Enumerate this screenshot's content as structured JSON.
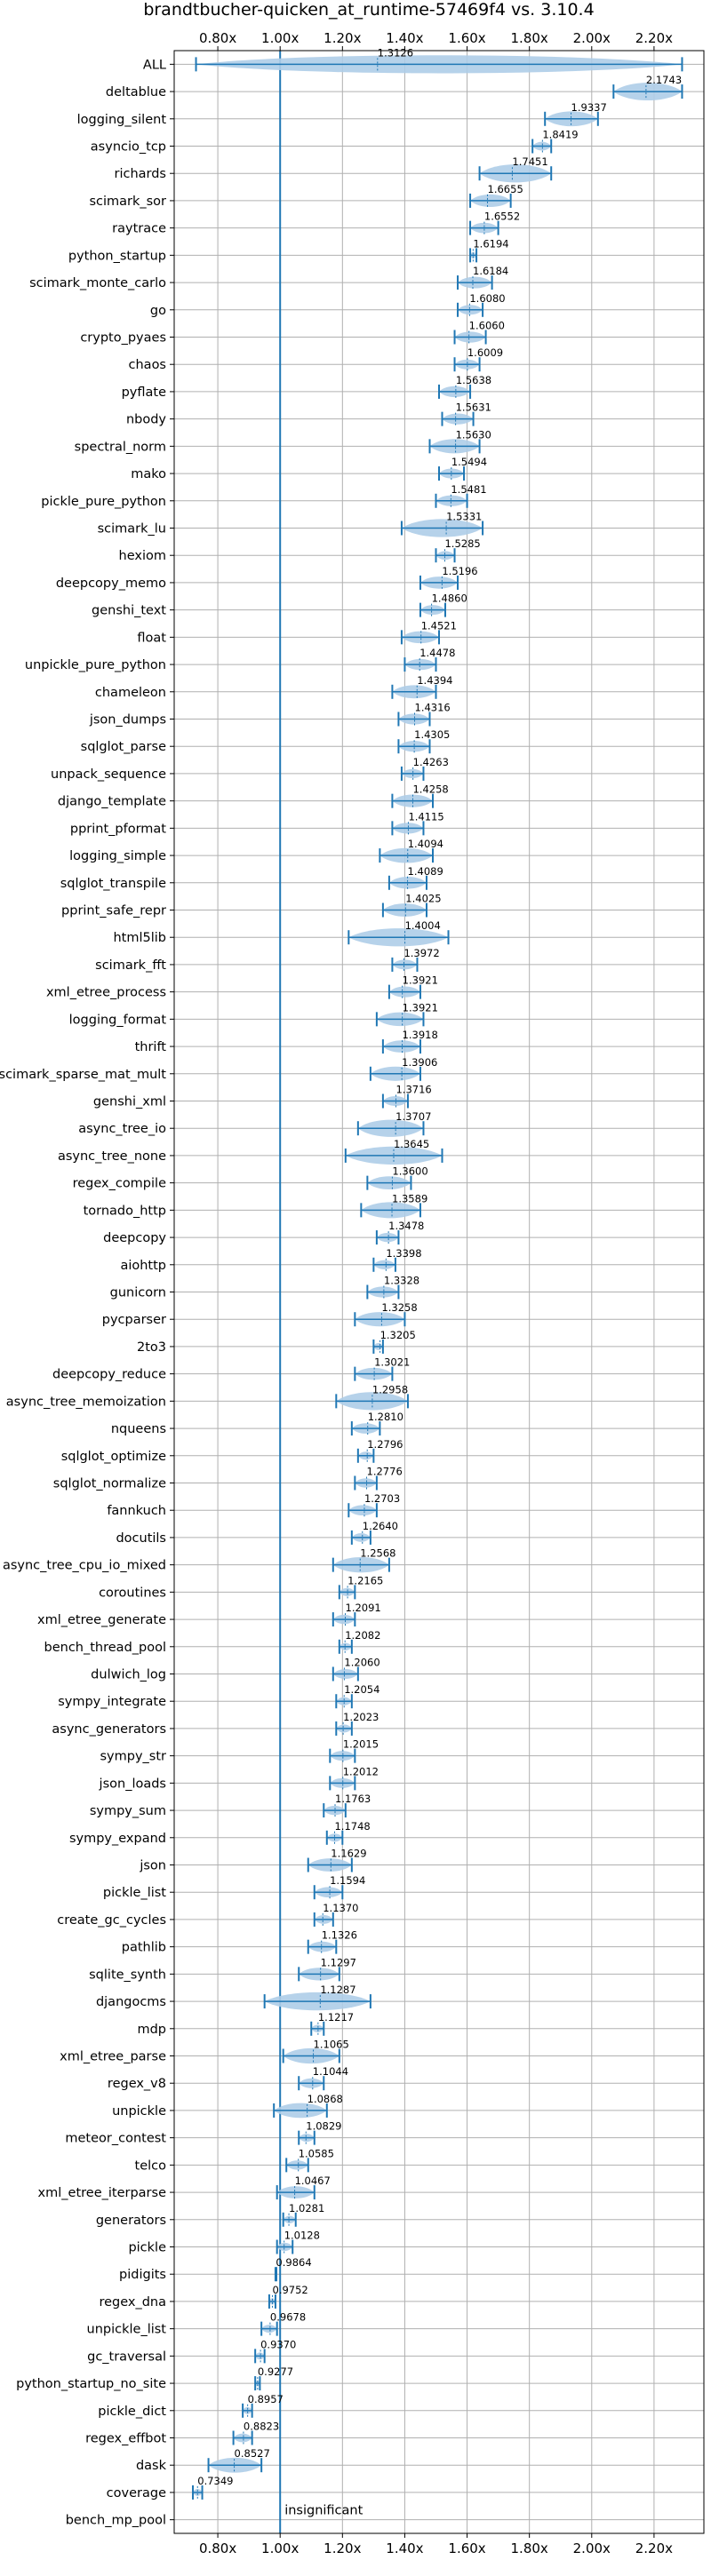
{
  "chart_data": {
    "type": "violin",
    "title": "brandtbucher-quicken_at_runtime-57469f4 vs. 3.10.4",
    "xlabel": "",
    "ylabel": "",
    "xlim": [
      0.66,
      2.36
    ],
    "x_ticks": [
      0.8,
      1.0,
      1.2,
      1.4,
      1.6,
      1.8,
      2.0,
      2.2
    ],
    "x_tick_labels": [
      "0.80x",
      "1.00x",
      "1.20x",
      "1.40x",
      "1.60x",
      "1.80x",
      "2.00x",
      "2.20x"
    ],
    "reference_line": 1.0,
    "grid": true,
    "colors": {
      "series": "#1f77b4",
      "violin": "#aecde8",
      "grid": "#b0b0b0"
    },
    "benchmarks": [
      {
        "name": "ALL",
        "value": 1.3126,
        "min": 0.73,
        "max": 2.29,
        "label": "1.3126"
      },
      {
        "name": "deltablue",
        "value": 2.1743,
        "min": 2.07,
        "max": 2.29,
        "label": "2.1743"
      },
      {
        "name": "logging_silent",
        "value": 1.9337,
        "min": 1.85,
        "max": 2.02,
        "label": "1.9337"
      },
      {
        "name": "asyncio_tcp",
        "value": 1.8419,
        "min": 1.81,
        "max": 1.87,
        "label": "1.8419"
      },
      {
        "name": "richards",
        "value": 1.7451,
        "min": 1.64,
        "max": 1.87,
        "label": "1.7451"
      },
      {
        "name": "scimark_sor",
        "value": 1.6655,
        "min": 1.61,
        "max": 1.74,
        "label": "1.6655"
      },
      {
        "name": "raytrace",
        "value": 1.6552,
        "min": 1.61,
        "max": 1.7,
        "label": "1.6552"
      },
      {
        "name": "python_startup",
        "value": 1.6194,
        "min": 1.61,
        "max": 1.63,
        "label": "1.6194"
      },
      {
        "name": "scimark_monte_carlo",
        "value": 1.6184,
        "min": 1.57,
        "max": 1.68,
        "label": "1.6184"
      },
      {
        "name": "go",
        "value": 1.608,
        "min": 1.57,
        "max": 1.65,
        "label": "1.6080"
      },
      {
        "name": "crypto_pyaes",
        "value": 1.606,
        "min": 1.56,
        "max": 1.66,
        "label": "1.6060"
      },
      {
        "name": "chaos",
        "value": 1.6009,
        "min": 1.56,
        "max": 1.64,
        "label": "1.6009"
      },
      {
        "name": "pyflate",
        "value": 1.5638,
        "min": 1.51,
        "max": 1.61,
        "label": "1.5638"
      },
      {
        "name": "nbody",
        "value": 1.5631,
        "min": 1.52,
        "max": 1.62,
        "label": "1.5631"
      },
      {
        "name": "spectral_norm",
        "value": 1.563,
        "min": 1.48,
        "max": 1.64,
        "label": "1.5630"
      },
      {
        "name": "mako",
        "value": 1.5494,
        "min": 1.51,
        "max": 1.59,
        "label": "1.5494"
      },
      {
        "name": "pickle_pure_python",
        "value": 1.5481,
        "min": 1.5,
        "max": 1.6,
        "label": "1.5481"
      },
      {
        "name": "scimark_lu",
        "value": 1.5331,
        "min": 1.39,
        "max": 1.65,
        "label": "1.5331"
      },
      {
        "name": "hexiom",
        "value": 1.5285,
        "min": 1.5,
        "max": 1.56,
        "label": "1.5285"
      },
      {
        "name": "deepcopy_memo",
        "value": 1.5196,
        "min": 1.45,
        "max": 1.57,
        "label": "1.5196"
      },
      {
        "name": "genshi_text",
        "value": 1.486,
        "min": 1.45,
        "max": 1.53,
        "label": "1.4860"
      },
      {
        "name": "float",
        "value": 1.4521,
        "min": 1.39,
        "max": 1.51,
        "label": "1.4521"
      },
      {
        "name": "unpickle_pure_python",
        "value": 1.4478,
        "min": 1.4,
        "max": 1.5,
        "label": "1.4478"
      },
      {
        "name": "chameleon",
        "value": 1.4394,
        "min": 1.36,
        "max": 1.5,
        "label": "1.4394"
      },
      {
        "name": "json_dumps",
        "value": 1.4316,
        "min": 1.38,
        "max": 1.48,
        "label": "1.4316"
      },
      {
        "name": "sqlglot_parse",
        "value": 1.4305,
        "min": 1.38,
        "max": 1.48,
        "label": "1.4305"
      },
      {
        "name": "unpack_sequence",
        "value": 1.4263,
        "min": 1.39,
        "max": 1.46,
        "label": "1.4263"
      },
      {
        "name": "django_template",
        "value": 1.4258,
        "min": 1.36,
        "max": 1.49,
        "label": "1.4258"
      },
      {
        "name": "pprint_pformat",
        "value": 1.4115,
        "min": 1.36,
        "max": 1.46,
        "label": "1.4115"
      },
      {
        "name": "logging_simple",
        "value": 1.4094,
        "min": 1.32,
        "max": 1.49,
        "label": "1.4094"
      },
      {
        "name": "sqlglot_transpile",
        "value": 1.4089,
        "min": 1.35,
        "max": 1.47,
        "label": "1.4089"
      },
      {
        "name": "pprint_safe_repr",
        "value": 1.4025,
        "min": 1.33,
        "max": 1.47,
        "label": "1.4025"
      },
      {
        "name": "html5lib",
        "value": 1.4004,
        "min": 1.22,
        "max": 1.54,
        "label": "1.4004"
      },
      {
        "name": "scimark_fft",
        "value": 1.3972,
        "min": 1.36,
        "max": 1.44,
        "label": "1.3972"
      },
      {
        "name": "xml_etree_process",
        "value": 1.3921,
        "min": 1.35,
        "max": 1.45,
        "label": "1.3921"
      },
      {
        "name": "logging_format",
        "value": 1.3921,
        "min": 1.31,
        "max": 1.46,
        "label": "1.3921"
      },
      {
        "name": "thrift",
        "value": 1.3918,
        "min": 1.33,
        "max": 1.45,
        "label": "1.3918"
      },
      {
        "name": "scimark_sparse_mat_mult",
        "value": 1.3906,
        "min": 1.29,
        "max": 1.45,
        "label": "1.3906"
      },
      {
        "name": "genshi_xml",
        "value": 1.3716,
        "min": 1.33,
        "max": 1.41,
        "label": "1.3716"
      },
      {
        "name": "async_tree_io",
        "value": 1.3707,
        "min": 1.25,
        "max": 1.46,
        "label": "1.3707"
      },
      {
        "name": "async_tree_none",
        "value": 1.3645,
        "min": 1.21,
        "max": 1.52,
        "label": "1.3645"
      },
      {
        "name": "regex_compile",
        "value": 1.36,
        "min": 1.28,
        "max": 1.42,
        "label": "1.3600"
      },
      {
        "name": "tornado_http",
        "value": 1.3589,
        "min": 1.26,
        "max": 1.45,
        "label": "1.3589"
      },
      {
        "name": "deepcopy",
        "value": 1.3478,
        "min": 1.31,
        "max": 1.38,
        "label": "1.3478"
      },
      {
        "name": "aiohttp",
        "value": 1.3398,
        "min": 1.3,
        "max": 1.37,
        "label": "1.3398"
      },
      {
        "name": "gunicorn",
        "value": 1.3328,
        "min": 1.28,
        "max": 1.38,
        "label": "1.3328"
      },
      {
        "name": "pycparser",
        "value": 1.3258,
        "min": 1.24,
        "max": 1.4,
        "label": "1.3258"
      },
      {
        "name": "2to3",
        "value": 1.3205,
        "min": 1.3,
        "max": 1.33,
        "label": "1.3205"
      },
      {
        "name": "deepcopy_reduce",
        "value": 1.3021,
        "min": 1.24,
        "max": 1.36,
        "label": "1.3021"
      },
      {
        "name": "async_tree_memoization",
        "value": 1.2958,
        "min": 1.18,
        "max": 1.41,
        "label": "1.2958"
      },
      {
        "name": "nqueens",
        "value": 1.281,
        "min": 1.23,
        "max": 1.32,
        "label": "1.2810"
      },
      {
        "name": "sqlglot_optimize",
        "value": 1.2796,
        "min": 1.25,
        "max": 1.3,
        "label": "1.2796"
      },
      {
        "name": "sqlglot_normalize",
        "value": 1.2776,
        "min": 1.24,
        "max": 1.31,
        "label": "1.2776"
      },
      {
        "name": "fannkuch",
        "value": 1.2703,
        "min": 1.22,
        "max": 1.31,
        "label": "1.2703"
      },
      {
        "name": "docutils",
        "value": 1.264,
        "min": 1.23,
        "max": 1.29,
        "label": "1.2640"
      },
      {
        "name": "async_tree_cpu_io_mixed",
        "value": 1.2568,
        "min": 1.17,
        "max": 1.35,
        "label": "1.2568"
      },
      {
        "name": "coroutines",
        "value": 1.2165,
        "min": 1.19,
        "max": 1.24,
        "label": "1.2165"
      },
      {
        "name": "xml_etree_generate",
        "value": 1.2091,
        "min": 1.17,
        "max": 1.24,
        "label": "1.2091"
      },
      {
        "name": "bench_thread_pool",
        "value": 1.2082,
        "min": 1.19,
        "max": 1.23,
        "label": "1.2082"
      },
      {
        "name": "dulwich_log",
        "value": 1.206,
        "min": 1.17,
        "max": 1.25,
        "label": "1.2060"
      },
      {
        "name": "sympy_integrate",
        "value": 1.2054,
        "min": 1.18,
        "max": 1.23,
        "label": "1.2054"
      },
      {
        "name": "async_generators",
        "value": 1.2023,
        "min": 1.18,
        "max": 1.23,
        "label": "1.2023"
      },
      {
        "name": "sympy_str",
        "value": 1.2015,
        "min": 1.16,
        "max": 1.24,
        "label": "1.2015"
      },
      {
        "name": "json_loads",
        "value": 1.2012,
        "min": 1.16,
        "max": 1.24,
        "label": "1.2012"
      },
      {
        "name": "sympy_sum",
        "value": 1.1763,
        "min": 1.14,
        "max": 1.21,
        "label": "1.1763"
      },
      {
        "name": "sympy_expand",
        "value": 1.1748,
        "min": 1.15,
        "max": 1.2,
        "label": "1.1748"
      },
      {
        "name": "json",
        "value": 1.1629,
        "min": 1.09,
        "max": 1.23,
        "label": "1.1629"
      },
      {
        "name": "pickle_list",
        "value": 1.1594,
        "min": 1.11,
        "max": 1.2,
        "label": "1.1594"
      },
      {
        "name": "create_gc_cycles",
        "value": 1.137,
        "min": 1.11,
        "max": 1.17,
        "label": "1.1370"
      },
      {
        "name": "pathlib",
        "value": 1.1326,
        "min": 1.09,
        "max": 1.18,
        "label": "1.1326"
      },
      {
        "name": "sqlite_synth",
        "value": 1.1297,
        "min": 1.06,
        "max": 1.19,
        "label": "1.1297"
      },
      {
        "name": "djangocms",
        "value": 1.1287,
        "min": 0.95,
        "max": 1.29,
        "label": "1.1287"
      },
      {
        "name": "mdp",
        "value": 1.1217,
        "min": 1.1,
        "max": 1.14,
        "label": "1.1217"
      },
      {
        "name": "xml_etree_parse",
        "value": 1.1065,
        "min": 1.01,
        "max": 1.19,
        "label": "1.1065"
      },
      {
        "name": "regex_v8",
        "value": 1.1044,
        "min": 1.06,
        "max": 1.14,
        "label": "1.1044"
      },
      {
        "name": "unpickle",
        "value": 1.0868,
        "min": 0.98,
        "max": 1.15,
        "label": "1.0868"
      },
      {
        "name": "meteor_contest",
        "value": 1.0829,
        "min": 1.06,
        "max": 1.11,
        "label": "1.0829"
      },
      {
        "name": "telco",
        "value": 1.0585,
        "min": 1.02,
        "max": 1.09,
        "label": "1.0585"
      },
      {
        "name": "xml_etree_iterparse",
        "value": 1.0467,
        "min": 0.99,
        "max": 1.11,
        "label": "1.0467"
      },
      {
        "name": "generators",
        "value": 1.0281,
        "min": 1.01,
        "max": 1.05,
        "label": "1.0281"
      },
      {
        "name": "pickle",
        "value": 1.0128,
        "min": 0.99,
        "max": 1.04,
        "label": "1.0128"
      },
      {
        "name": "pidigits",
        "value": 0.9864,
        "min": 0.985,
        "max": 0.988,
        "label": "0.9864"
      },
      {
        "name": "regex_dna",
        "value": 0.9752,
        "min": 0.965,
        "max": 0.985,
        "label": "0.9752"
      },
      {
        "name": "unpickle_list",
        "value": 0.9678,
        "min": 0.94,
        "max": 0.99,
        "label": "0.9678"
      },
      {
        "name": "gc_traversal",
        "value": 0.937,
        "min": 0.92,
        "max": 0.95,
        "label": "0.9370"
      },
      {
        "name": "python_startup_no_site",
        "value": 0.9277,
        "min": 0.92,
        "max": 0.935,
        "label": "0.9277"
      },
      {
        "name": "pickle_dict",
        "value": 0.8957,
        "min": 0.88,
        "max": 0.91,
        "label": "0.8957"
      },
      {
        "name": "regex_effbot",
        "value": 0.8823,
        "min": 0.85,
        "max": 0.91,
        "label": "0.8823"
      },
      {
        "name": "dask",
        "value": 0.8527,
        "min": 0.77,
        "max": 0.94,
        "label": "0.8527"
      },
      {
        "name": "coverage",
        "value": 0.7349,
        "min": 0.72,
        "max": 0.75,
        "label": "0.7349"
      },
      {
        "name": "bench_mp_pool",
        "value": null,
        "min": null,
        "max": null,
        "label": "insignificant"
      }
    ]
  }
}
